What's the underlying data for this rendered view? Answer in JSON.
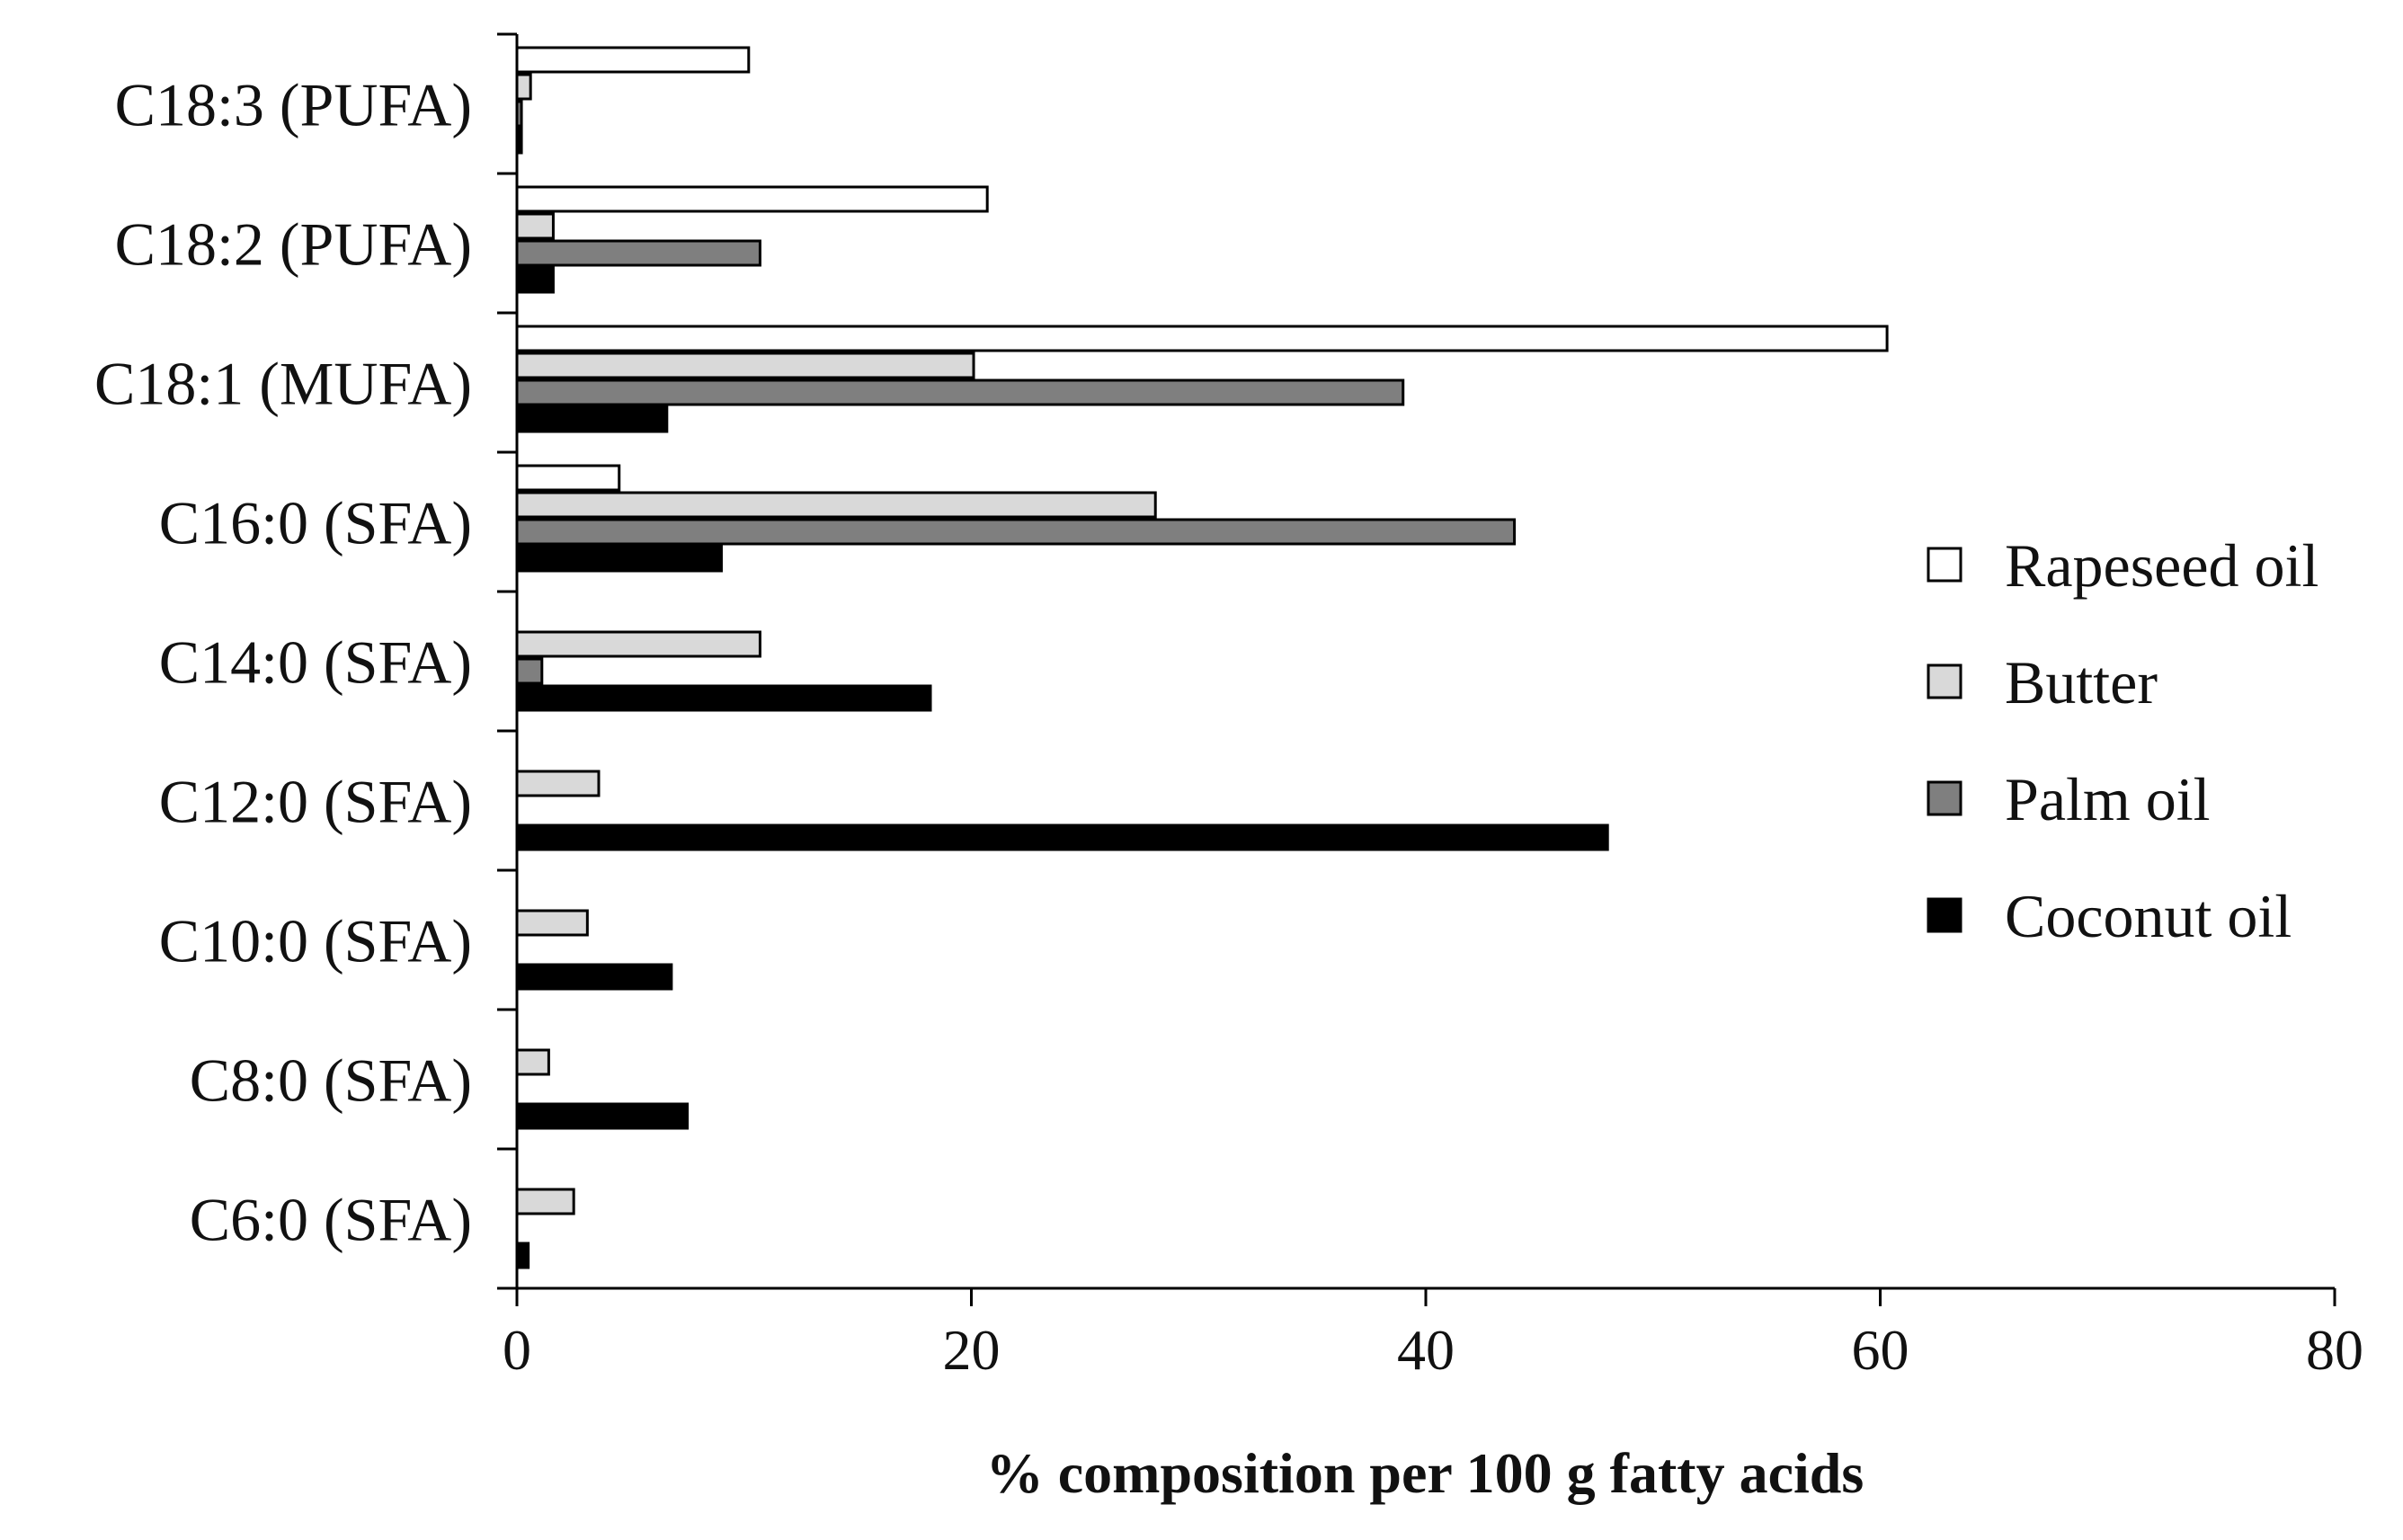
{
  "chart_data": {
    "type": "bar",
    "orientation": "horizontal",
    "categories": [
      "C18:3 (PUFA)",
      "C18:2 (PUFA)",
      "C18:1 (MUFA)",
      "C16:0 (SFA)",
      "C14:0 (SFA)",
      "C12:0 (SFA)",
      "C10:0 (SFA)",
      "C8:0 (SFA)",
      "C6:0 (SFA)"
    ],
    "series": [
      {
        "name": "Rapeseed oil",
        "color": "#ffffff",
        "values": [
          10.2,
          20.7,
          60.3,
          4.5,
          0,
          0,
          0,
          0,
          0
        ]
      },
      {
        "name": "Butter",
        "color": "#d9d9d9",
        "values": [
          0.6,
          1.6,
          20.1,
          28.1,
          10.7,
          3.6,
          3.1,
          1.4,
          2.5
        ]
      },
      {
        "name": "Palm oil",
        "color": "#7f7f7f",
        "values": [
          0.2,
          10.7,
          39.0,
          43.9,
          1.1,
          0,
          0,
          0,
          0
        ]
      },
      {
        "name": "Coconut oil",
        "color": "#000000",
        "values": [
          0.2,
          1.6,
          6.6,
          9.0,
          18.2,
          48.0,
          6.8,
          7.5,
          0.5
        ]
      }
    ],
    "xlabel": "% composition per 100 g fatty acids",
    "ylabel": "",
    "xlim": [
      0,
      80
    ],
    "xticks": [
      0,
      20,
      40,
      60,
      80
    ],
    "grid": false,
    "legend": "right"
  }
}
